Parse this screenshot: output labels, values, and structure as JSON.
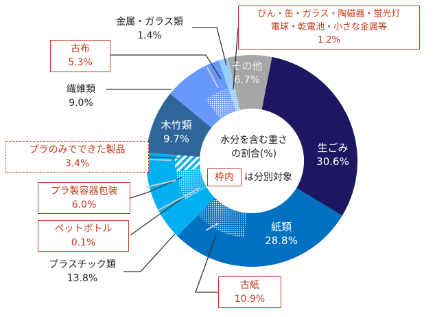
{
  "chart_data": {
    "type": "pie",
    "style": "donut",
    "center_text": [
      "水分を含む重さ",
      "の割合(%)"
    ],
    "legend_box_text": "枠内",
    "legend_text": "は分別対象",
    "segments": [
      {
        "name": "生ごみ",
        "value": 30.6,
        "label": "30.6%",
        "color": "#1c1760"
      },
      {
        "name": "紙類",
        "value": 28.8,
        "label": "28.8%",
        "color": "#0070c0",
        "subs": [
          {
            "name": "古紙",
            "value": 10.9,
            "label": "10.9%",
            "pattern": "dots",
            "position": "end",
            "separately_collected": true
          }
        ]
      },
      {
        "name": "プラスチック類",
        "value": 13.8,
        "label": "13.8%",
        "color": "#00b0f0",
        "subs": [
          {
            "name": "ペットボトル",
            "value": 0.1,
            "label": "0.1%",
            "pattern": "line",
            "separately_collected": true
          },
          {
            "name": "プラ製容器包装",
            "value": 6.0,
            "label": "6.0%",
            "pattern": "dots",
            "separately_collected": true
          },
          {
            "name": "プラのみでできた製品",
            "value": 3.4,
            "label": "3.4%",
            "pattern": "stripes",
            "separately_collected": true
          }
        ]
      },
      {
        "name": "木竹類",
        "value": 9.7,
        "label": "9.7%",
        "color": "#2e6699"
      },
      {
        "name": "繊維類",
        "value": 9.0,
        "label": "9.0%",
        "color": "#6699ff",
        "subs": [
          {
            "name": "古布",
            "value": 5.3,
            "label": "5.3%",
            "pattern": "dots",
            "position": "end",
            "separately_collected": true
          }
        ]
      },
      {
        "name": "金属・ガラス類",
        "value": 1.4,
        "label": "1.4%",
        "color": "#99ccff",
        "subs": [
          {
            "name": "びん・缶・ガラス・陶磁器・蛍光灯 電球・乾電池・小さな金属等",
            "lines": [
              "びん・缶・ガラス・陶磁器・蛍光灯",
              "電球・乾電池・小さな金属等"
            ],
            "value": 1.2,
            "label": "1.2%",
            "pattern": "dots",
            "position": "end",
            "separately_collected": true
          }
        ]
      },
      {
        "name": "その他",
        "value": 6.7,
        "label": "6.7%",
        "color": "#a6a6a6"
      }
    ],
    "accent_color": "#c0391b"
  }
}
